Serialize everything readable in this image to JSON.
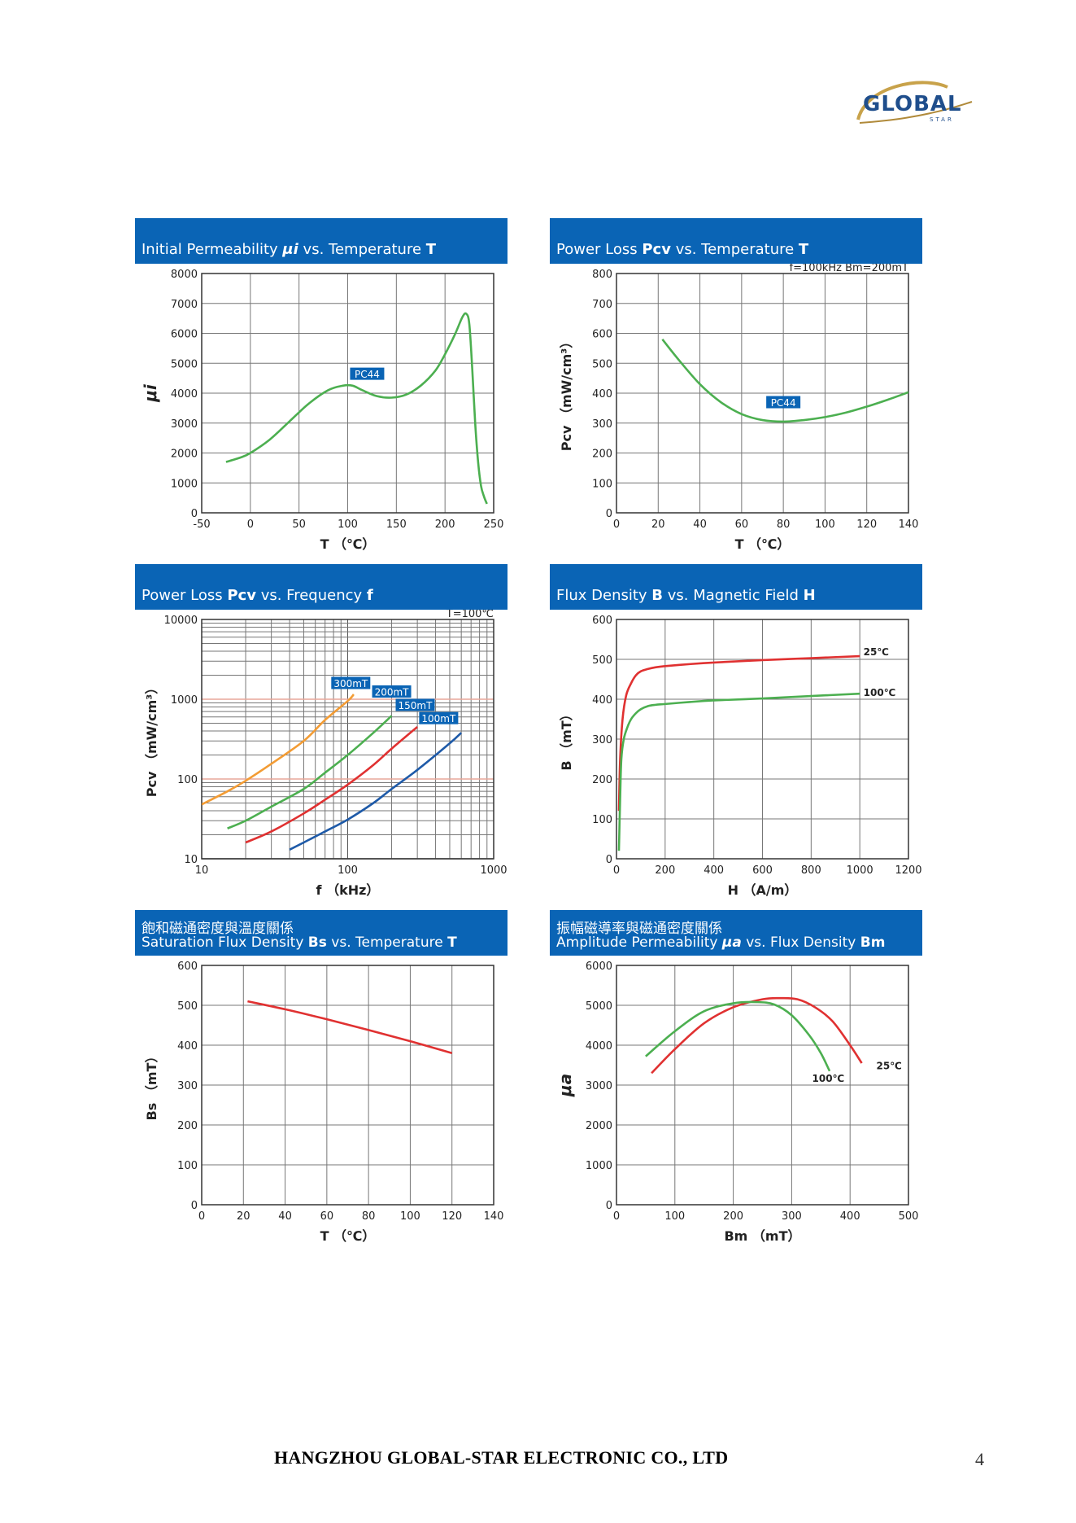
{
  "logo": {
    "text": "GLOBAL",
    "sub": "STAR"
  },
  "footer": {
    "company": "HANGZHOU GLOBAL-STAR ELECTRONIC CO., LTD",
    "page": "4"
  },
  "charts": [
    {
      "cn_title": "",
      "title_parts": [
        "Initial Permeability ",
        "μi",
        " vs. Temperature ",
        "T"
      ],
      "note": "",
      "ylabel": "μi",
      "xlabel": "T （℃）"
    },
    {
      "cn_title": "",
      "title_parts": [
        "Power Loss ",
        "Pcv",
        " vs. Temperature ",
        "T"
      ],
      "note": "f=100kHz    Bm=200mT",
      "ylabel": "Pcv （mW/cm³）",
      "xlabel": "T （℃）"
    },
    {
      "cn_title": "",
      "title_parts": [
        "Power Loss ",
        "Pcv",
        " vs. Frequency ",
        "f"
      ],
      "note": "T=100℃",
      "ylabel": "Pcv （mW/cm³）",
      "xlabel": "f （kHz）"
    },
    {
      "cn_title": "",
      "title_parts": [
        "Flux Density ",
        "B",
        " vs. Magnetic Field ",
        "H"
      ],
      "note": "",
      "ylabel": "B （mT）",
      "xlabel": "H （A/m）"
    },
    {
      "cn_title": "飽和磁通密度與溫度關係",
      "title_parts": [
        "Saturation Flux Density ",
        "Bs",
        " vs. Temperature ",
        "T"
      ],
      "note": "",
      "ylabel": "Bs （mT）",
      "xlabel": "T （℃）"
    },
    {
      "cn_title": "振幅磁導率與磁通密度關係",
      "title_parts": [
        "Amplitude Permeability ",
        "μa",
        " vs. Flux Density ",
        "Bm"
      ],
      "note": "",
      "ylabel": "μa",
      "xlabel": "Bm （mT）"
    }
  ],
  "chart_data": [
    {
      "type": "line",
      "xlim": [
        -50,
        250
      ],
      "ylim": [
        0,
        8000
      ],
      "grid": true,
      "xticks": [
        -50,
        0,
        50,
        100,
        150,
        200,
        250
      ],
      "yticks": [
        0,
        1000,
        2000,
        3000,
        4000,
        5000,
        6000,
        7000,
        8000
      ],
      "series": [
        {
          "name": "PC44",
          "color": "#4caf50",
          "x": [
            -25,
            -10,
            0,
            20,
            40,
            60,
            80,
            95,
            105,
            115,
            130,
            145,
            160,
            175,
            190,
            200,
            210,
            218,
            222,
            225,
            228,
            231,
            234,
            237,
            240,
            243
          ],
          "y": [
            1700,
            1850,
            2000,
            2450,
            3050,
            3650,
            4100,
            4250,
            4250,
            4100,
            3900,
            3850,
            3950,
            4250,
            4750,
            5300,
            5950,
            6550,
            6650,
            6300,
            4800,
            3000,
            1700,
            900,
            550,
            300
          ]
        }
      ],
      "labels": [
        {
          "text": "PC44",
          "x": 120,
          "y": 4650
        }
      ]
    },
    {
      "type": "line",
      "xlim": [
        0,
        140
      ],
      "ylim": [
        0,
        800
      ],
      "grid": true,
      "xticks": [
        0,
        20,
        40,
        60,
        80,
        100,
        120,
        140
      ],
      "yticks": [
        0,
        100,
        200,
        300,
        400,
        500,
        600,
        700,
        800
      ],
      "series": [
        {
          "name": "PC44",
          "color": "#4caf50",
          "x": [
            22,
            30,
            40,
            50,
            60,
            70,
            80,
            90,
            100,
            110,
            120,
            130,
            140
          ],
          "y": [
            580,
            510,
            430,
            370,
            330,
            310,
            305,
            310,
            320,
            335,
            355,
            378,
            403
          ]
        }
      ],
      "labels": [
        {
          "text": "PC44",
          "x": 80,
          "y": 370
        }
      ]
    },
    {
      "type": "line",
      "xscale": "log",
      "yscale": "log",
      "xlim": [
        10,
        1000
      ],
      "ylim": [
        10,
        10000
      ],
      "grid": true,
      "xticks": [
        10,
        100,
        1000
      ],
      "yticks": [
        10,
        100,
        1000,
        10000
      ],
      "series": [
        {
          "name": "300mT",
          "color": "#f39c34",
          "x": [
            10,
            15,
            20,
            30,
            50,
            70,
            100,
            110
          ],
          "y": [
            48,
            70,
            95,
            155,
            300,
            550,
            950,
            1150
          ]
        },
        {
          "name": "200mT",
          "color": "#4caf50",
          "x": [
            15,
            20,
            30,
            50,
            70,
            100,
            150,
            200
          ],
          "y": [
            24,
            30,
            45,
            75,
            120,
            200,
            380,
            620
          ]
        },
        {
          "name": "150mT",
          "color": "#e03131",
          "x": [
            20,
            30,
            50,
            70,
            100,
            150,
            200,
            300
          ],
          "y": [
            16,
            22,
            37,
            55,
            85,
            150,
            240,
            450
          ]
        },
        {
          "name": "100mT",
          "color": "#1e5aa8",
          "x": [
            40,
            50,
            70,
            100,
            150,
            200,
            300,
            500,
            600
          ],
          "y": [
            13,
            16,
            22,
            31,
            50,
            75,
            130,
            280,
            380
          ]
        }
      ],
      "labels": [
        {
          "text": "300mT",
          "x": 105,
          "y": 1600
        },
        {
          "text": "200mT",
          "x": 200,
          "y": 1250
        },
        {
          "text": "150mT",
          "x": 290,
          "y": 850
        },
        {
          "text": "100mT",
          "x": 420,
          "y": 580
        }
      ]
    },
    {
      "type": "line",
      "xlim": [
        0,
        1200
      ],
      "ylim": [
        0,
        600
      ],
      "grid": true,
      "xticks": [
        0,
        200,
        400,
        600,
        800,
        1000,
        1200
      ],
      "yticks": [
        0,
        100,
        200,
        300,
        400,
        500,
        600
      ],
      "series": [
        {
          "name": "25℃",
          "color": "#e03131",
          "x": [
            10,
            15,
            25,
            40,
            60,
            80,
            100,
            130,
            160,
            200,
            300,
            400,
            600,
            800,
            1000
          ],
          "y": [
            120,
            250,
            350,
            410,
            440,
            460,
            470,
            476,
            480,
            483,
            488,
            492,
            498,
            503,
            508
          ]
        },
        {
          "name": "100℃",
          "color": "#4caf50",
          "x": [
            10,
            15,
            20,
            30,
            45,
            60,
            80,
            100,
            130,
            160,
            200,
            300,
            400,
            600,
            800,
            1000
          ],
          "y": [
            20,
            150,
            250,
            300,
            330,
            350,
            365,
            375,
            383,
            386,
            388,
            393,
            397,
            402,
            408,
            414
          ]
        }
      ],
      "labels": [
        {
          "text": "25℃",
          "x": 1015,
          "y": 520
        },
        {
          "text": "100℃",
          "x": 1015,
          "y": 418
        }
      ]
    },
    {
      "type": "line",
      "xlim": [
        0,
        140
      ],
      "ylim": [
        0,
        600
      ],
      "grid": true,
      "xticks": [
        0,
        20,
        40,
        60,
        80,
        100,
        120,
        140
      ],
      "yticks": [
        0,
        100,
        200,
        300,
        400,
        500,
        600
      ],
      "series": [
        {
          "name": "",
          "color": "#e03131",
          "x": [
            22,
            40,
            60,
            80,
            100,
            120
          ],
          "y": [
            510,
            490,
            465,
            438,
            410,
            380
          ]
        }
      ]
    },
    {
      "type": "line",
      "xlim": [
        0,
        500
      ],
      "ylim": [
        0,
        6000
      ],
      "grid": true,
      "xticks": [
        0,
        100,
        200,
        300,
        400,
        500
      ],
      "yticks": [
        0,
        1000,
        2000,
        3000,
        4000,
        5000,
        6000
      ],
      "series": [
        {
          "name": "25℃",
          "color": "#e03131",
          "x": [
            60,
            100,
            150,
            200,
            250,
            280,
            310,
            340,
            370,
            400,
            420
          ],
          "y": [
            3300,
            3900,
            4550,
            4950,
            5150,
            5180,
            5150,
            4950,
            4600,
            4000,
            3550
          ]
        },
        {
          "name": "100℃",
          "color": "#4caf50",
          "x": [
            50,
            100,
            150,
            200,
            240,
            270,
            300,
            330,
            350,
            365
          ],
          "y": [
            3720,
            4350,
            4850,
            5050,
            5080,
            5020,
            4750,
            4250,
            3800,
            3350
          ]
        }
      ],
      "labels": [
        {
          "text": "25℃",
          "x": 445,
          "y": 3500
        },
        {
          "text": "100℃",
          "x": 335,
          "y": 3180
        }
      ]
    }
  ]
}
